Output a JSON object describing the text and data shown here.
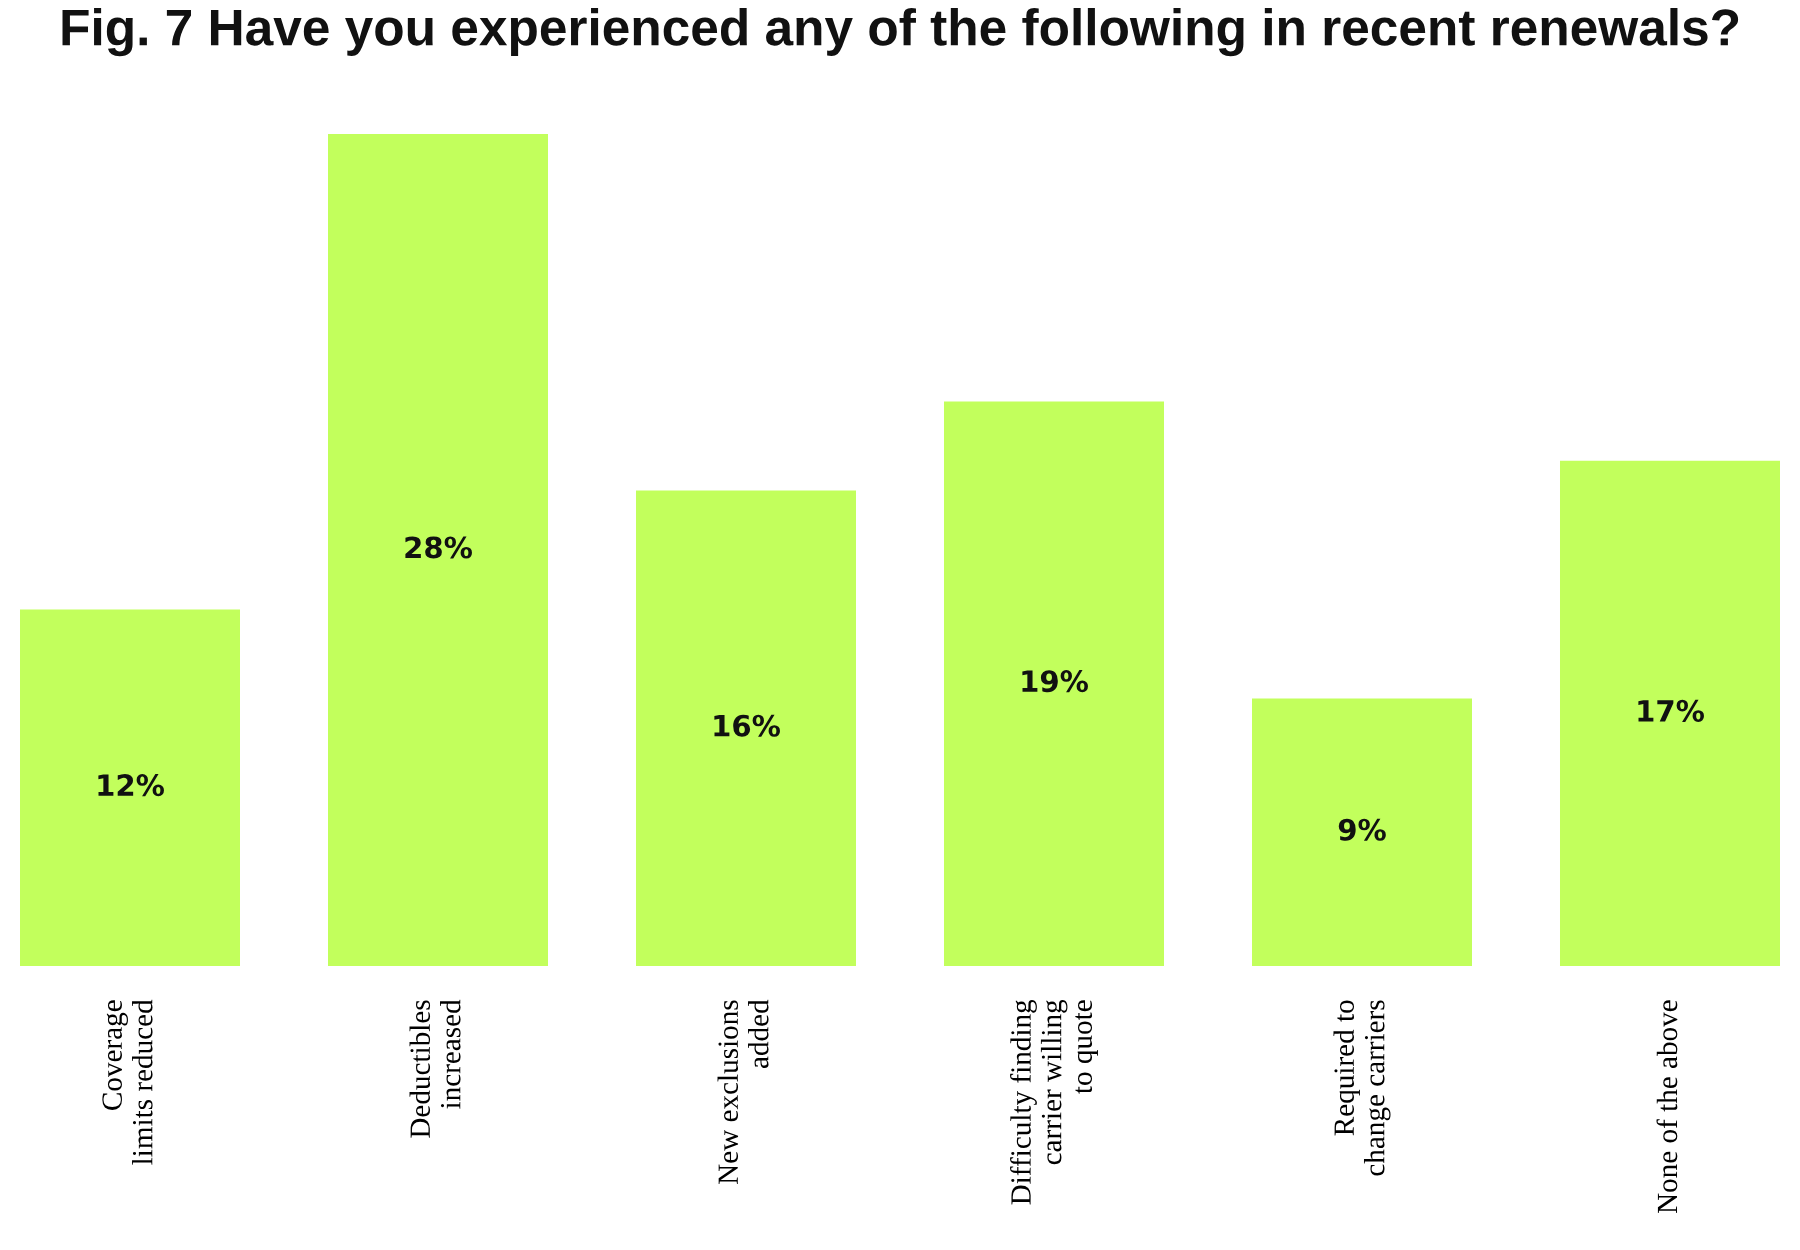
{
  "chart_data": {
    "type": "bar",
    "title": "Fig. 7 Have you experienced any of the following in recent renewals?",
    "categories": [
      "Coverage\nlimits reduced",
      "Deductibles\nincreased",
      "New exclusions\nadded",
      "Difficulty finding\ncarrier willing\nto quote",
      "Required to\nchange carriers",
      "None of the above"
    ],
    "values": [
      12,
      28,
      16,
      19,
      9,
      17
    ],
    "value_labels": [
      "12%",
      "28%",
      "16%",
      "19%",
      "9%",
      "17%"
    ],
    "color": "#c2ff5c",
    "grid": false
  }
}
